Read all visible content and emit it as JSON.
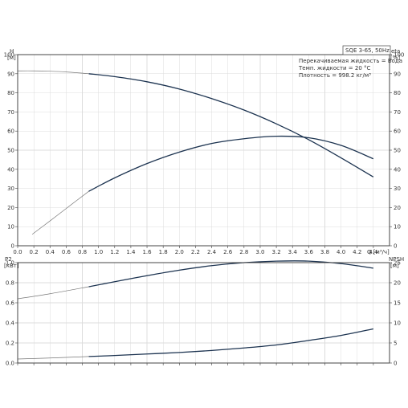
{
  "model_label": "SQE 3-65, 50Hz",
  "conditions": [
    "Перекачиваемая жидкость = Вода",
    "Темп. жидкости = 20 °C",
    "Плотность = 998.2 кг/м³"
  ],
  "colors": {
    "curve": "#1c3350",
    "extrap": "#777777",
    "grid": "#dcdcdc"
  },
  "chart_data": [
    {
      "type": "line",
      "x_label": "Q [м³/ч]",
      "xlim": [
        0,
        4.6
      ],
      "x_ticks": [
        0,
        0.2,
        0.4,
        0.6,
        0.8,
        1.0,
        1.2,
        1.4,
        1.6,
        1.8,
        2.0,
        2.2,
        2.4,
        2.6,
        2.8,
        3.0,
        3.2,
        3.4,
        3.6,
        3.8,
        4.0,
        4.2,
        4.4
      ],
      "left_axis": {
        "label": "H",
        "unit": "[м]",
        "lim": [
          0,
          100
        ],
        "ticks": [
          0,
          10,
          20,
          30,
          40,
          50,
          60,
          70,
          80,
          90,
          100
        ]
      },
      "right_axis": {
        "label": "eta",
        "unit": "[%]",
        "lim": [
          0,
          100
        ],
        "ticks": [
          0,
          10,
          20,
          30,
          40,
          50,
          60,
          70,
          80,
          90,
          100
        ]
      },
      "grid": true,
      "series": [
        {
          "axis": "left",
          "extrapolated_below_x": 0.88,
          "x": [
            0,
            0.2,
            0.4,
            0.6,
            0.88,
            1.2,
            1.6,
            2.0,
            2.4,
            2.8,
            3.2,
            3.6,
            4.0,
            4.4
          ],
          "y": [
            91.5,
            91.5,
            91.3,
            90.9,
            90.0,
            88.5,
            85.8,
            82.0,
            77.0,
            71.0,
            63.8,
            55.5,
            46.0,
            36.0
          ]
        },
        {
          "axis": "right",
          "extrapolated_below_x": 0.88,
          "x": [
            0.18,
            0.4,
            0.6,
            0.88,
            1.2,
            1.6,
            2.0,
            2.4,
            2.8,
            3.2,
            3.6,
            4.0,
            4.4
          ],
          "y": [
            6,
            13,
            19.5,
            28.5,
            35.5,
            43,
            49,
            53.5,
            56,
            57.3,
            56.5,
            52.5,
            45.5
          ]
        }
      ]
    },
    {
      "type": "line",
      "xlim": [
        0,
        4.6
      ],
      "left_axis": {
        "label": "P2",
        "unit": "[кВт]",
        "lim": [
          0,
          1.0
        ],
        "ticks": [
          0.0,
          0.2,
          0.4,
          0.6,
          0.8,
          1.0
        ]
      },
      "right_axis": {
        "label": "NPSH",
        "unit": "[м]",
        "lim": [
          0,
          25
        ],
        "ticks": [
          0,
          5,
          10,
          15,
          20,
          25
        ]
      },
      "grid": true,
      "series": [
        {
          "axis": "left",
          "extrapolated_below_x": 0.88,
          "x": [
            0,
            0.4,
            0.88,
            1.2,
            1.6,
            2.0,
            2.4,
            2.8,
            3.2,
            3.6,
            4.0,
            4.4
          ],
          "y": [
            0.64,
            0.69,
            0.76,
            0.81,
            0.87,
            0.925,
            0.97,
            1.0,
            1.015,
            1.015,
            0.99,
            0.945
          ]
        },
        {
          "axis": "left",
          "extrapolated_below_x": 0.88,
          "x": [
            0,
            0.4,
            0.88,
            1.2,
            1.6,
            2.0,
            2.4,
            2.8,
            3.2,
            3.6,
            4.0,
            4.4
          ],
          "y": [
            0.04,
            0.05,
            0.065,
            0.075,
            0.09,
            0.105,
            0.125,
            0.15,
            0.18,
            0.225,
            0.275,
            0.34
          ]
        }
      ]
    }
  ]
}
